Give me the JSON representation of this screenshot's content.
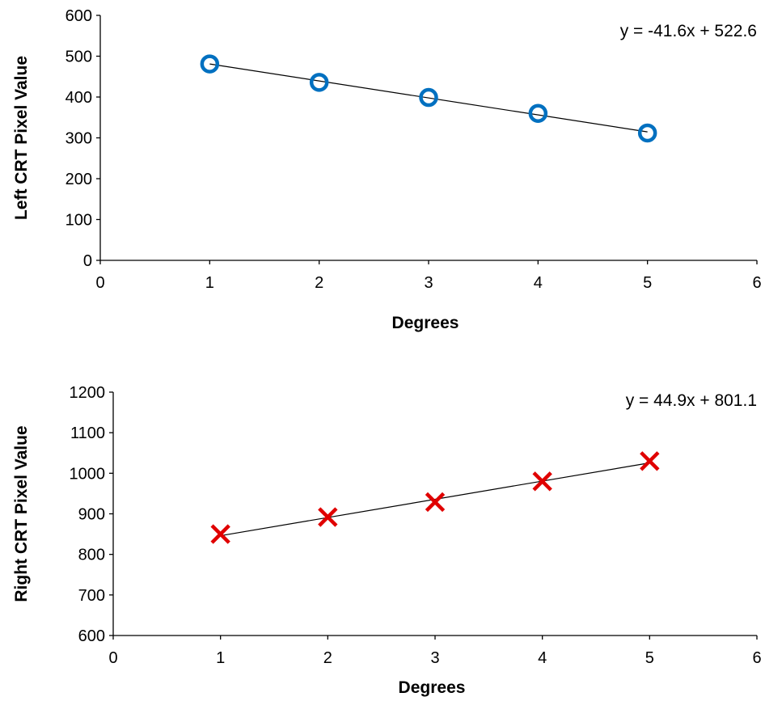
{
  "chart_data": [
    {
      "type": "scatter",
      "xlabel": "Degrees",
      "ylabel": "Left CRT Pixel Value",
      "xlim": [
        0,
        6
      ],
      "ylim": [
        0,
        600
      ],
      "x_ticks": [
        "0",
        "1",
        "2",
        "3",
        "4",
        "5",
        "6"
      ],
      "y_ticks": [
        "0",
        "100",
        "200",
        "300",
        "400",
        "500",
        "600"
      ],
      "grid": false,
      "series": [
        {
          "marker": "circle",
          "color": "#0070C0",
          "x": [
            1,
            2,
            3,
            4,
            5
          ],
          "y": [
            481,
            436,
            399,
            360,
            312
          ]
        }
      ],
      "trendline": {
        "slope": -41.6,
        "intercept": 522.6,
        "x_range": [
          1,
          5
        ],
        "equation": "y = -41.6x + 522.6"
      }
    },
    {
      "type": "scatter",
      "xlabel": "Degrees",
      "ylabel": "Right CRT Pixel Value",
      "xlim": [
        0,
        6
      ],
      "ylim": [
        600,
        1200
      ],
      "x_ticks": [
        "0",
        "1",
        "2",
        "3",
        "4",
        "5",
        "6"
      ],
      "y_ticks": [
        "600",
        "700",
        "800",
        "900",
        "1000",
        "1100",
        "1200"
      ],
      "grid": false,
      "series": [
        {
          "marker": "x",
          "color": "#E00000",
          "x": [
            1,
            2,
            3,
            4,
            5
          ],
          "y": [
            850,
            892,
            929,
            980,
            1030
          ]
        }
      ],
      "trendline": {
        "slope": 44.9,
        "intercept": 801.1,
        "x_range": [
          1,
          5
        ],
        "equation": "y = 44.9x + 801.1"
      }
    }
  ]
}
